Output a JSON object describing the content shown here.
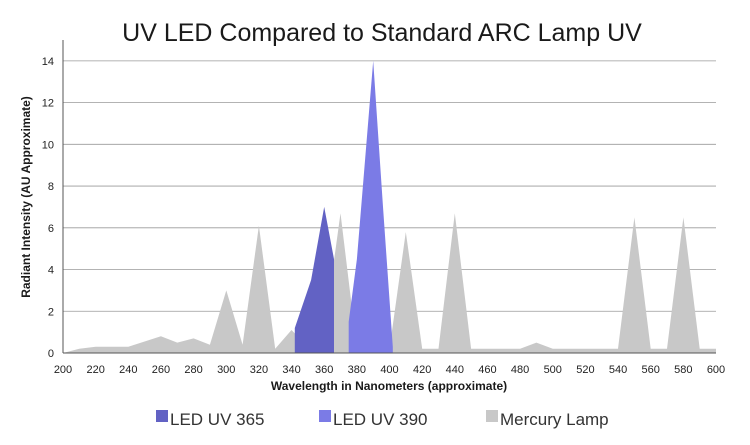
{
  "chart_data": {
    "type": "area",
    "title": "UV LED Compared to Standard ARC Lamp UV",
    "xlabel": "Wavelength in Nanometers (approximate)",
    "ylabel": "Radiant Intensity (AU Approximate)",
    "xlim": [
      200,
      600
    ],
    "ylim": [
      0,
      15
    ],
    "xticks": [
      200,
      220,
      240,
      260,
      280,
      300,
      320,
      340,
      360,
      380,
      400,
      420,
      440,
      460,
      480,
      500,
      520,
      540,
      560,
      580,
      600
    ],
    "yticks": [
      0,
      2,
      4,
      6,
      8,
      10,
      12,
      14
    ],
    "grid": "horizontal",
    "legend_position": "bottom",
    "series": [
      {
        "name": "Mercury Lamp",
        "color": "#c8c8c8",
        "x": [
          200,
          210,
          220,
          240,
          260,
          270,
          280,
          290,
          300,
          310,
          320,
          330,
          340,
          350,
          360,
          370,
          380,
          390,
          400,
          410,
          420,
          430,
          440,
          450,
          460,
          470,
          480,
          490,
          500,
          510,
          520,
          530,
          540,
          550,
          560,
          570,
          580,
          590,
          600
        ],
        "y": [
          0,
          0.2,
          0.3,
          0.3,
          0.8,
          0.5,
          0.7,
          0.4,
          3.0,
          0.4,
          6.1,
          0.2,
          1.1,
          0.3,
          1.0,
          6.7,
          0.2,
          0.2,
          0.2,
          5.8,
          0.2,
          0.2,
          6.7,
          0.2,
          0.2,
          0.2,
          0.2,
          0.5,
          0.2,
          0.2,
          0.2,
          0.2,
          0.2,
          6.5,
          0.2,
          0.2,
          6.5,
          0.2,
          0.2
        ]
      },
      {
        "name": "LED UV 365",
        "color": "#6262c4",
        "x": [
          342,
          352,
          360,
          366
        ],
        "y": [
          1.2,
          3.5,
          7.0,
          4.5
        ]
      },
      {
        "name": "LED UV 390",
        "color": "#7b7be6",
        "x": [
          375,
          380,
          390,
          396,
          402
        ],
        "y": [
          1.5,
          4.5,
          14.0,
          7.0,
          0.3
        ]
      }
    ]
  },
  "legend": {
    "items": [
      {
        "label": "LED UV 365",
        "color": "#6262c4"
      },
      {
        "label": "LED UV 390",
        "color": "#7b7be6"
      },
      {
        "label": "Mercury Lamp",
        "color": "#c8c8c8"
      }
    ]
  }
}
